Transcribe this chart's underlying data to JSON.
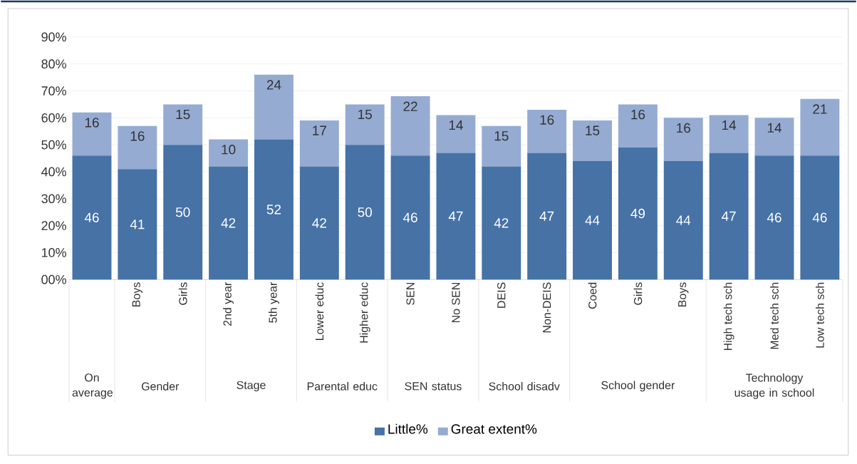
{
  "chart_data": {
    "type": "bar",
    "stacked": true,
    "categories": [
      null,
      "Boys",
      "Girls",
      "2nd year",
      "5th year",
      "Lower educ",
      "Higher educ",
      "SEN",
      "No SEN",
      "DEIS",
      "Non-DEIS",
      "Coed",
      "Girls",
      "Boys",
      "High tech sch",
      "Med tech sch",
      "Low tech sch"
    ],
    "series": [
      {
        "name": "Little%",
        "color": "#4672a6",
        "values": [
          46,
          41,
          50,
          42,
          52,
          42,
          50,
          46,
          47,
          42,
          47,
          44,
          49,
          44,
          47,
          46,
          46
        ]
      },
      {
        "name": "Great extent%",
        "color": "#95abd2",
        "values": [
          16,
          16,
          15,
          10,
          24,
          17,
          15,
          22,
          14,
          15,
          16,
          15,
          16,
          16,
          14,
          14,
          21
        ]
      }
    ],
    "data_labels": true,
    "ylim": [
      0,
      90
    ],
    "yticks": [
      {
        "value": 0,
        "label": "00%"
      },
      {
        "value": 10,
        "label": "10%"
      },
      {
        "value": 20,
        "label": "20%"
      },
      {
        "value": 30,
        "label": "30%"
      },
      {
        "value": 40,
        "label": "40%"
      },
      {
        "value": 50,
        "label": "50%"
      },
      {
        "value": 60,
        "label": "60%"
      },
      {
        "value": 70,
        "label": "70%"
      },
      {
        "value": 80,
        "label": "80%"
      },
      {
        "value": 90,
        "label": "90%"
      }
    ],
    "grid": "y",
    "legend": "bottom",
    "annotations": [
      "On average",
      "Gender",
      "Stage",
      "Parental educ",
      "SEN status",
      "School disadv",
      "School gender",
      "Technology usage in school"
    ]
  }
}
